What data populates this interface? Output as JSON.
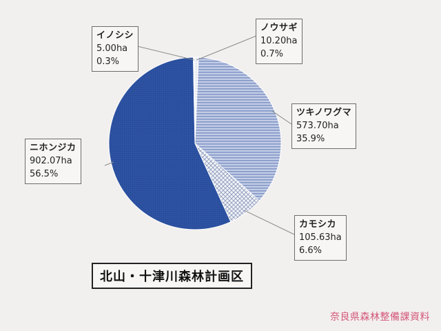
{
  "chart_data": {
    "type": "pie",
    "title": "北山・十津川森林計画区",
    "slices": [
      {
        "label": "ノウサギ",
        "value": 10.2,
        "unit": "ha",
        "value_text": "10.20ha",
        "percent_text": "0.7%",
        "color": "#e4e8f2",
        "pattern": "light"
      },
      {
        "label": "ツキノワグマ",
        "value": 573.7,
        "unit": "ha",
        "value_text": "573.70ha",
        "percent_text": "35.9%",
        "color": "#a9b7d8",
        "pattern": "hstripe"
      },
      {
        "label": "カモシカ",
        "value": 105.63,
        "unit": "ha",
        "value_text": "105.63ha",
        "percent_text": "6.6%",
        "color": "#e9edf5",
        "pattern": "crosshatch"
      },
      {
        "label": "ニホンジカ",
        "value": 902.07,
        "unit": "ha",
        "value_text": "902.07ha",
        "percent_text": "56.5%",
        "color": "#2a4f9e",
        "pattern": "solid"
      },
      {
        "label": "イノシシ",
        "value": 5.0,
        "unit": "ha",
        "value_text": "5.00ha",
        "percent_text": "0.3%",
        "color": "#cfd6e8",
        "pattern": "light"
      }
    ],
    "start_angle_deg": 0,
    "direction": "clockwise"
  },
  "source": "奈良県森林整備課資料"
}
